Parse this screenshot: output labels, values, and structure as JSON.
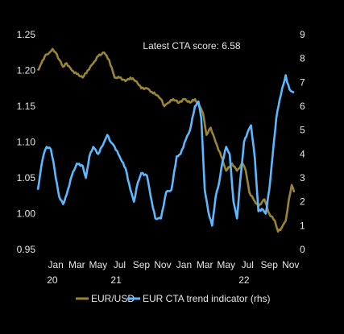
{
  "chart_data": {
    "type": "line",
    "annotation": "Latest CTA score: 6.58",
    "colors": {
      "background": "#000000",
      "eurusd": "#9a8435",
      "cta": "#5cb8ff",
      "text": "#e6e6e6"
    },
    "y_left": {
      "min": 0.95,
      "max": 1.25,
      "ticks": [
        "0.95",
        "1.00",
        "1.05",
        "1.10",
        "1.15",
        "1.20",
        "1.25"
      ]
    },
    "y_right": {
      "min": 0,
      "max": 9,
      "ticks": [
        "0",
        "1",
        "2",
        "3",
        "4",
        "5",
        "6",
        "7",
        "8",
        "9"
      ]
    },
    "x_ticks": [
      {
        "month": "Jan",
        "year": "20",
        "date": "2020-01"
      },
      {
        "month": "Mar",
        "year": "",
        "date": "2020-03"
      },
      {
        "month": "May",
        "year": "",
        "date": "2020-05"
      },
      {
        "month": "Jul",
        "year": "21",
        "date": "2020-07"
      },
      {
        "month": "Sep",
        "year": "",
        "date": "2020-09"
      },
      {
        "month": "Nov",
        "year": "",
        "date": "2020-11"
      },
      {
        "month": "Jan",
        "year": "",
        "date": "2021-01"
      },
      {
        "month": "Mar",
        "year": "",
        "date": "2021-03"
      },
      {
        "month": "May",
        "year": "",
        "date": "2021-05"
      },
      {
        "month": "Jul",
        "year": "22",
        "date": "2021-07"
      },
      {
        "month": "Sep",
        "year": "",
        "date": "2021-09"
      },
      {
        "month": "Nov",
        "year": "",
        "date": "2021-11"
      }
    ],
    "series": [
      {
        "name": "EUR/USD",
        "axis": "left",
        "points": [
          [
            "2019-11-25",
            1.2
          ],
          [
            "2019-12-05",
            1.21
          ],
          [
            "2019-12-15",
            1.22
          ],
          [
            "2019-12-28",
            1.225
          ],
          [
            "2020-01-06",
            1.23
          ],
          [
            "2020-01-15",
            1.225
          ],
          [
            "2020-01-25",
            1.215
          ],
          [
            "2020-02-05",
            1.205
          ],
          [
            "2020-02-15",
            1.21
          ],
          [
            "2020-03-01",
            1.2
          ],
          [
            "2020-03-15",
            1.195
          ],
          [
            "2020-04-01",
            1.19
          ],
          [
            "2020-04-15",
            1.2
          ],
          [
            "2020-05-01",
            1.21
          ],
          [
            "2020-05-15",
            1.22
          ],
          [
            "2020-06-01",
            1.225
          ],
          [
            "2020-06-15",
            1.215
          ],
          [
            "2020-07-01",
            1.19
          ],
          [
            "2020-07-15",
            1.19
          ],
          [
            "2020-08-01",
            1.185
          ],
          [
            "2020-08-15",
            1.19
          ],
          [
            "2020-09-01",
            1.185
          ],
          [
            "2020-09-15",
            1.175
          ],
          [
            "2020-10-01",
            1.175
          ],
          [
            "2020-10-15",
            1.17
          ],
          [
            "2020-11-01",
            1.165
          ],
          [
            "2020-11-10",
            1.16
          ],
          [
            "2020-11-20",
            1.15
          ],
          [
            "2020-12-01",
            1.155
          ],
          [
            "2020-12-15",
            1.16
          ],
          [
            "2021-01-01",
            1.155
          ],
          [
            "2021-01-15",
            1.16
          ],
          [
            "2021-02-01",
            1.155
          ],
          [
            "2021-02-15",
            1.16
          ],
          [
            "2021-03-01",
            1.15
          ],
          [
            "2021-03-10",
            1.14
          ],
          [
            "2021-03-20",
            1.11
          ],
          [
            "2021-04-01",
            1.12
          ],
          [
            "2021-04-15",
            1.1
          ],
          [
            "2021-05-01",
            1.08
          ],
          [
            "2021-05-15",
            1.06
          ],
          [
            "2021-06-01",
            1.07
          ],
          [
            "2021-06-15",
            1.06
          ],
          [
            "2021-07-01",
            1.07
          ],
          [
            "2021-07-10",
            1.06
          ],
          [
            "2021-07-20",
            1.03
          ],
          [
            "2021-08-01",
            1.02
          ],
          [
            "2021-08-15",
            1.01
          ],
          [
            "2021-09-01",
            1.02
          ],
          [
            "2021-09-15",
            1.0
          ],
          [
            "2021-10-01",
            0.99
          ],
          [
            "2021-10-10",
            0.975
          ],
          [
            "2021-10-20",
            0.98
          ],
          [
            "2021-11-01",
            0.99
          ],
          [
            "2021-11-10",
            1.02
          ],
          [
            "2021-11-18",
            1.04
          ],
          [
            "2021-11-25",
            1.03
          ]
        ]
      },
      {
        "name": "EUR CTA trend indicator (rhs)",
        "axis": "right",
        "points": [
          [
            "2019-11-25",
            2.5
          ],
          [
            "2019-12-05",
            3.5
          ],
          [
            "2019-12-12",
            4.0
          ],
          [
            "2019-12-20",
            4.3
          ],
          [
            "2020-01-01",
            4.2
          ],
          [
            "2020-01-08",
            3.7
          ],
          [
            "2020-01-15",
            3.0
          ],
          [
            "2020-01-25",
            2.2
          ],
          [
            "2020-02-05",
            1.9
          ],
          [
            "2020-02-15",
            2.3
          ],
          [
            "2020-03-01",
            3.1
          ],
          [
            "2020-03-15",
            3.6
          ],
          [
            "2020-04-01",
            3.5
          ],
          [
            "2020-04-10",
            3.0
          ],
          [
            "2020-04-20",
            3.9
          ],
          [
            "2020-05-01",
            4.3
          ],
          [
            "2020-05-15",
            4.0
          ],
          [
            "2020-06-01",
            4.5
          ],
          [
            "2020-06-10",
            4.8
          ],
          [
            "2020-06-20",
            4.5
          ],
          [
            "2020-07-01",
            4.3
          ],
          [
            "2020-07-15",
            3.9
          ],
          [
            "2020-08-01",
            3.4
          ],
          [
            "2020-08-15",
            2.5
          ],
          [
            "2020-08-25",
            2.0
          ],
          [
            "2020-09-05",
            2.8
          ],
          [
            "2020-09-15",
            3.2
          ],
          [
            "2020-10-01",
            3.1
          ],
          [
            "2020-10-15",
            2.0
          ],
          [
            "2020-10-25",
            1.3
          ],
          [
            "2020-11-10",
            1.3
          ],
          [
            "2020-11-25",
            2.4
          ],
          [
            "2020-12-10",
            2.5
          ],
          [
            "2020-12-25",
            3.9
          ],
          [
            "2021-01-05",
            4.0
          ],
          [
            "2021-01-20",
            4.6
          ],
          [
            "2021-02-01",
            5.0
          ],
          [
            "2021-02-15",
            6.0
          ],
          [
            "2021-02-25",
            6.2
          ],
          [
            "2021-03-05",
            5.5
          ],
          [
            "2021-03-15",
            2.5
          ],
          [
            "2021-03-25",
            1.6
          ],
          [
            "2021-04-05",
            1.0
          ],
          [
            "2021-04-15",
            2.2
          ],
          [
            "2021-04-25",
            2.8
          ],
          [
            "2021-05-05",
            3.7
          ],
          [
            "2021-05-15",
            4.3
          ],
          [
            "2021-05-25",
            4.0
          ],
          [
            "2021-06-05",
            2.0
          ],
          [
            "2021-06-15",
            1.3
          ],
          [
            "2021-06-25",
            3.0
          ],
          [
            "2021-07-05",
            4.5
          ],
          [
            "2021-07-15",
            4.9
          ],
          [
            "2021-07-25",
            5.2
          ],
          [
            "2021-08-05",
            3.8
          ],
          [
            "2021-08-15",
            1.6
          ],
          [
            "2021-08-25",
            1.7
          ],
          [
            "2021-09-05",
            1.5
          ],
          [
            "2021-09-15",
            2.5
          ],
          [
            "2021-09-25",
            4.0
          ],
          [
            "2021-10-05",
            5.5
          ],
          [
            "2021-10-15",
            6.3
          ],
          [
            "2021-10-25",
            6.9
          ],
          [
            "2021-11-01",
            7.3
          ],
          [
            "2021-11-05",
            7.0
          ],
          [
            "2021-11-12",
            6.7
          ],
          [
            "2021-11-20",
            6.6
          ],
          [
            "2021-11-25",
            6.58
          ]
        ]
      }
    ],
    "legend": {
      "placement": "bottom-center"
    }
  }
}
